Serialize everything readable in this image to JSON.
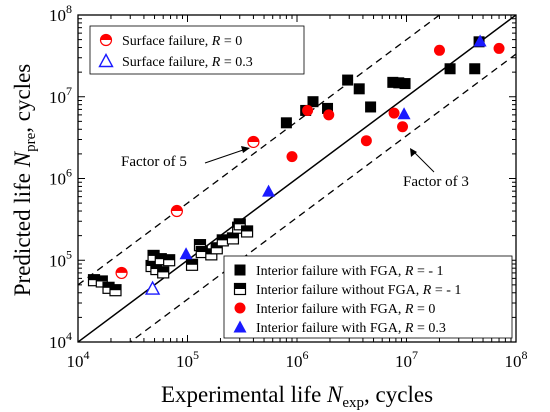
{
  "chart_data": {
    "type": "scatter",
    "xlabel": {
      "main": "Experimental life ",
      "var": "N",
      "sub": "exp",
      "suffix": ", cycles"
    },
    "ylabel": {
      "main": "Predicted life ",
      "var": "N",
      "sub": "pre",
      "suffix": ", cycles"
    },
    "xscale": "log",
    "yscale": "log",
    "xlim": [
      10000,
      100000000
    ],
    "ylim": [
      10000,
      100000000
    ],
    "x_ticks": [
      {
        "value": 10000,
        "base": "10",
        "exp": "4"
      },
      {
        "value": 100000,
        "base": "10",
        "exp": "5"
      },
      {
        "value": 1000000,
        "base": "10",
        "exp": "6"
      },
      {
        "value": 10000000,
        "base": "10",
        "exp": "7"
      },
      {
        "value": 100000000,
        "base": "10",
        "exp": "8"
      }
    ],
    "y_ticks": [
      {
        "value": 10000,
        "base": "10",
        "exp": "4"
      },
      {
        "value": 100000,
        "base": "10",
        "exp": "5"
      },
      {
        "value": 1000000,
        "base": "10",
        "exp": "6"
      },
      {
        "value": 10000000,
        "base": "10",
        "exp": "7"
      },
      {
        "value": 100000000,
        "base": "10",
        "exp": "8"
      }
    ],
    "grid": false,
    "reference_lines": [
      {
        "name": "equal-life",
        "style": "solid",
        "factor": 1
      },
      {
        "name": "upper-bound",
        "style": "dashed",
        "factor": 5
      },
      {
        "name": "lower-bound",
        "style": "dashed",
        "factor": 0.333
      }
    ],
    "annotations": [
      {
        "text": "Factor of 5",
        "points_to": [
          1800000,
          4800000
        ]
      },
      {
        "text": "Factor of 3",
        "points_to": [
          10000000,
          3300000
        ]
      }
    ],
    "legend_top": {
      "placement": "top-left",
      "entries": [
        {
          "series": "surface_r0",
          "label": "Surface failure,  ",
          "r_label": "R",
          "r_value": " = 0"
        },
        {
          "series": "surface_r03",
          "label": "Surface failure,  ",
          "r_label": "R",
          "r_value": " = 0.3"
        }
      ]
    },
    "legend_bottom": {
      "placement": "bottom-right",
      "entries": [
        {
          "series": "interior_fga_rm1",
          "label": "Interior failure with FGA,  ",
          "r_label": "R",
          "r_value": " = - 1"
        },
        {
          "series": "interior_nofga_rm1",
          "label": "Interior failure without FGA,  ",
          "r_label": "R",
          "r_value": " = - 1"
        },
        {
          "series": "interior_fga_r0",
          "label": "Interior failure with FGA,  ",
          "r_label": "R",
          "r_value": " = 0"
        },
        {
          "series": "interior_fga_r03",
          "label": "Interior failure with FGA,  ",
          "r_label": "R",
          "r_value": " = 0.3"
        }
      ]
    },
    "series": [
      {
        "id": "interior_fga_rm1",
        "marker": "square-filled",
        "color": "#000000",
        "points": [
          [
            800000,
            4800000
          ],
          [
            1200000,
            6800000
          ],
          [
            1400000,
            8700000
          ],
          [
            1900000,
            7200000
          ],
          [
            2900000,
            16000000
          ],
          [
            3700000,
            12500000
          ],
          [
            4700000,
            7500000
          ],
          [
            7500000,
            15000000
          ],
          [
            8500000,
            14800000
          ],
          [
            9700000,
            14500000
          ],
          [
            25000000,
            22000000
          ],
          [
            42000000,
            22000000
          ],
          [
            46000000,
            47000000
          ]
        ]
      },
      {
        "id": "interior_nofga_rm1",
        "marker": "square-half",
        "color": "#000000",
        "points": [
          [
            14000,
            57000
          ],
          [
            16500,
            55000
          ],
          [
            19000,
            46000
          ],
          [
            22000,
            43000
          ],
          [
            47000,
            85000
          ],
          [
            49000,
            113000
          ],
          [
            52000,
            78000
          ],
          [
            57000,
            103000
          ],
          [
            60000,
            71000
          ],
          [
            68000,
            100000
          ],
          [
            110000,
            88000
          ],
          [
            130000,
            153000
          ],
          [
            135000,
            126000
          ],
          [
            165000,
            118000
          ],
          [
            185000,
            140000
          ],
          [
            210000,
            175000
          ],
          [
            260000,
            185000
          ],
          [
            290000,
            250000
          ],
          [
            300000,
            275000
          ],
          [
            350000,
            225000
          ]
        ]
      },
      {
        "id": "interior_fga_r0",
        "marker": "circle-filled",
        "color": "#ff0000",
        "points": [
          [
            900000,
            1850000
          ],
          [
            1250000,
            6800000
          ],
          [
            1950000,
            6000000
          ],
          [
            4300000,
            2900000
          ],
          [
            7700000,
            6300000
          ],
          [
            9200000,
            4300000
          ],
          [
            20000000,
            37000000
          ],
          [
            70000000,
            39000000
          ]
        ]
      },
      {
        "id": "interior_fga_r03",
        "marker": "triangle-filled",
        "color": "#1a1aff",
        "points": [
          [
            97000,
            120000
          ],
          [
            550000,
            700000
          ],
          [
            9500000,
            6200000
          ],
          [
            47000000,
            48000000
          ]
        ]
      },
      {
        "id": "surface_r0",
        "marker": "circle-half",
        "color": "#ff0000",
        "points": [
          [
            25000,
            70000
          ],
          [
            80000,
            400000
          ],
          [
            400000,
            2800000
          ]
        ]
      },
      {
        "id": "surface_r03",
        "marker": "triangle-open",
        "color": "#1a1aff",
        "points": [
          [
            48000,
            45000
          ]
        ]
      }
    ]
  }
}
